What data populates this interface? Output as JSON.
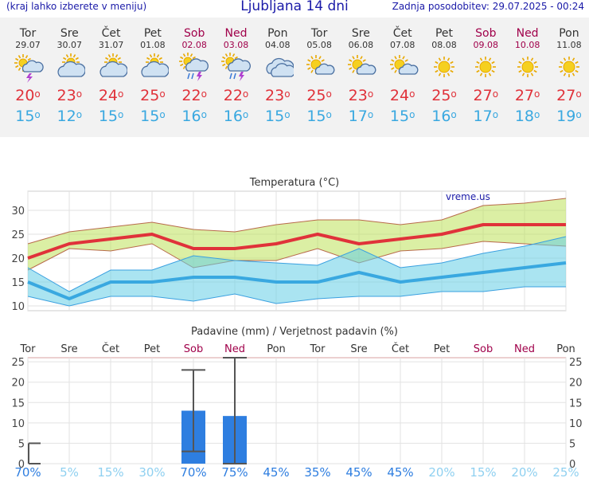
{
  "header": {
    "menu_hint": "(kraj lahko izberete v meniju)",
    "title": "Ljubljana 14 dni",
    "last_update": "Zadnja posodobitev: 29.07.2025 - 00:24"
  },
  "colors": {
    "accent_text": "#1a1aa8",
    "weekend": "#a0004a",
    "max_temp": "#e0323a",
    "min_temp": "#39a8e0",
    "precip_bar": "#2e7ee0"
  },
  "days": [
    {
      "day": "Tor",
      "date": "29.07",
      "icon": "sun-cloud-thunder-icon",
      "max": "20",
      "min": "15",
      "weekend": false
    },
    {
      "day": "Sre",
      "date": "30.07",
      "icon": "sun-cloud-icon",
      "max": "23",
      "min": "12",
      "weekend": false
    },
    {
      "day": "Čet",
      "date": "31.07",
      "icon": "sun-cloud-icon",
      "max": "24",
      "min": "15",
      "weekend": false
    },
    {
      "day": "Pet",
      "date": "01.08",
      "icon": "sun-cloud-icon",
      "max": "25",
      "min": "15",
      "weekend": false
    },
    {
      "day": "Sob",
      "date": "02.08",
      "icon": "sun-cloud-rain-thunder-icon",
      "max": "22",
      "min": "16",
      "weekend": true
    },
    {
      "day": "Ned",
      "date": "03.08",
      "icon": "sun-cloud-rain-thunder-icon",
      "max": "22",
      "min": "16",
      "weekend": true
    },
    {
      "day": "Pon",
      "date": "04.08",
      "icon": "cloud-icon",
      "max": "23",
      "min": "15",
      "weekend": false
    },
    {
      "day": "Tor",
      "date": "05.08",
      "icon": "sun-small-cloud-icon",
      "max": "25",
      "min": "15",
      "weekend": false
    },
    {
      "day": "Sre",
      "date": "06.08",
      "icon": "sun-small-cloud-icon",
      "max": "23",
      "min": "17",
      "weekend": false
    },
    {
      "day": "Čet",
      "date": "07.08",
      "icon": "sun-small-cloud-icon",
      "max": "24",
      "min": "15",
      "weekend": false
    },
    {
      "day": "Pet",
      "date": "08.08",
      "icon": "sun-icon",
      "max": "25",
      "min": "16",
      "weekend": false
    },
    {
      "day": "Sob",
      "date": "09.08",
      "icon": "sun-icon",
      "max": "27",
      "min": "17",
      "weekend": true
    },
    {
      "day": "Ned",
      "date": "10.08",
      "icon": "sun-icon",
      "max": "27",
      "min": "18",
      "weekend": true
    },
    {
      "day": "Pon",
      "date": "11.08",
      "icon": "sun-icon",
      "max": "27",
      "min": "19",
      "weekend": false
    }
  ],
  "degree_symbol": "o",
  "chart_data": [
    {
      "type": "line",
      "title": "Temperatura (°C)",
      "watermark": "vreme.us",
      "categories": [
        "Tor",
        "Sre",
        "Čet",
        "Pet",
        "Sob",
        "Ned",
        "Pon",
        "Tor",
        "Sre",
        "Čet",
        "Pet",
        "Sob",
        "Ned",
        "Pon"
      ],
      "ylim": [
        9,
        34
      ],
      "yticks": [
        10,
        15,
        20,
        25,
        30
      ],
      "grid": true,
      "series": [
        {
          "values": [
            20,
            23,
            24,
            25,
            22,
            22,
            23,
            25,
            23,
            24,
            25,
            27,
            27,
            27
          ]
        },
        {
          "values": [
            15,
            11.5,
            15,
            15,
            16,
            16,
            15,
            15,
            17,
            15,
            16,
            17,
            18,
            19
          ]
        }
      ],
      "bands": [
        {
          "upper": [
            23,
            25.5,
            26.5,
            27.5,
            26,
            25.5,
            27,
            28,
            28,
            27,
            28,
            31,
            31.5,
            32.5
          ],
          "lower": [
            17.5,
            22,
            21.5,
            23,
            18,
            19.5,
            19.5,
            22,
            19,
            21.5,
            22,
            23.5,
            23,
            22.5
          ]
        },
        {
          "upper": [
            18,
            13,
            17.5,
            17.5,
            20.5,
            19.5,
            19,
            18.5,
            22,
            18,
            19,
            21,
            22.5,
            24.5
          ],
          "lower": [
            12,
            10,
            12,
            12,
            11,
            12.5,
            10.5,
            11.5,
            12,
            12,
            13,
            13,
            14,
            14
          ]
        }
      ]
    },
    {
      "type": "bar",
      "title": "Padavine (mm) / Verjetnost padavin (%)",
      "categories": [
        "Tor",
        "Sre",
        "Čet",
        "Pet",
        "Sob",
        "Ned",
        "Pon",
        "Tor",
        "Sre",
        "Čet",
        "Pet",
        "Sob",
        "Ned",
        "Pon"
      ],
      "weekend": [
        false,
        false,
        false,
        false,
        true,
        true,
        false,
        false,
        false,
        false,
        false,
        true,
        true,
        false
      ],
      "ylim": [
        0,
        26
      ],
      "yticks": [
        0,
        5,
        10,
        15,
        20,
        25
      ],
      "grid": true,
      "values": [
        2.8,
        0,
        0,
        0,
        13,
        11.7,
        0,
        0,
        0,
        0,
        0,
        0,
        0,
        0
      ],
      "error_low": [
        0,
        null,
        null,
        null,
        3,
        0,
        null,
        null,
        null,
        null,
        null,
        null,
        null,
        null
      ],
      "error_high": [
        5,
        null,
        null,
        null,
        23,
        26,
        null,
        null,
        null,
        null,
        null,
        null,
        null,
        null
      ],
      "probability": [
        "70%",
        "5%",
        "15%",
        "30%",
        "70%",
        "75%",
        "45%",
        "35%",
        "45%",
        "45%",
        "20%",
        "15%",
        "20%",
        "25%"
      ],
      "probability_strong": [
        true,
        false,
        false,
        false,
        true,
        true,
        true,
        true,
        true,
        true,
        false,
        false,
        false,
        false
      ]
    }
  ]
}
